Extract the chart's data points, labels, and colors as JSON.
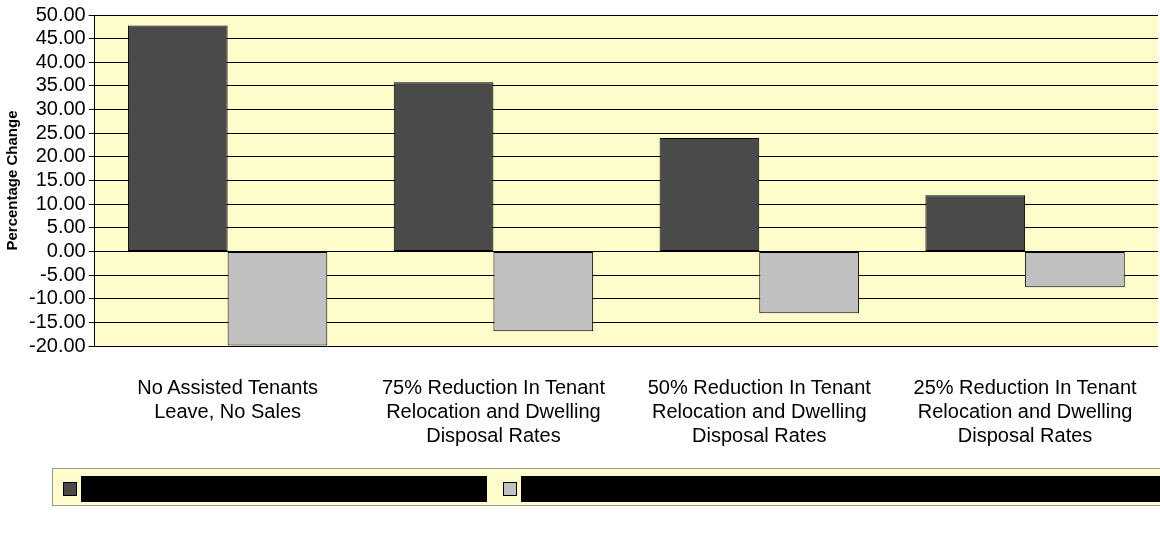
{
  "chart_data": {
    "type": "bar",
    "ylabel": "Percentage Change",
    "categories": [
      "No Assisted Tenants Leave, No Sales",
      "75% Reduction In Tenant Relocation and Dwelling Disposal Rates",
      "50% Reduction In Tenant Relocation and Dwelling Disposal Rates",
      "25% Reduction In Tenant Relocation and Dwelling Disposal Rates"
    ],
    "series": [
      {
        "color": "#4a4a4a",
        "values": [
          47.8,
          35.8,
          24.0,
          11.9
        ]
      },
      {
        "color": "#c0c0c0",
        "values": [
          -19.9,
          -16.9,
          -13.1,
          -7.6
        ]
      }
    ],
    "ylim": [
      -20,
      50
    ],
    "yticks": [
      {
        "value": -20,
        "label": "-20.00"
      },
      {
        "value": -15,
        "label": "-15.00"
      },
      {
        "value": -10,
        "label": "-10.00"
      },
      {
        "value": -5,
        "label": "-5.00"
      },
      {
        "value": 0,
        "label": "0.00"
      },
      {
        "value": 5,
        "label": "5.00"
      },
      {
        "value": 10,
        "label": "10.00"
      },
      {
        "value": 15,
        "label": "15.00"
      },
      {
        "value": 20,
        "label": "20.00"
      },
      {
        "value": 25,
        "label": "25.00"
      },
      {
        "value": 30,
        "label": "30.00"
      },
      {
        "value": 35,
        "label": "35.00"
      },
      {
        "value": 40,
        "label": "40.00"
      },
      {
        "value": 45,
        "label": "45.00"
      },
      {
        "value": 50,
        "label": "50.00"
      }
    ],
    "grid": "y"
  }
}
